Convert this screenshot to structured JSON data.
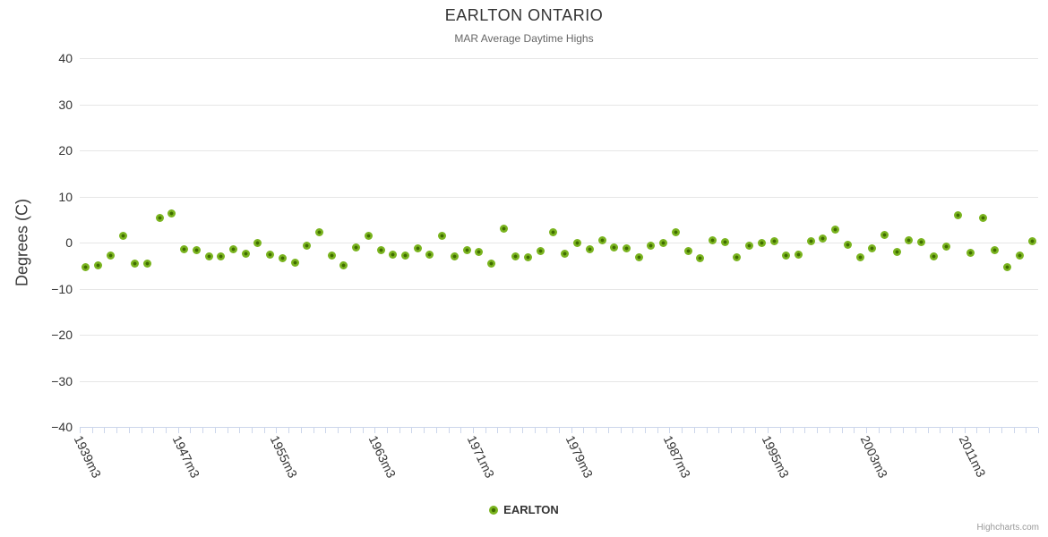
{
  "header": {
    "title": "EARLTON ONTARIO",
    "subtitle": "MAR Average Daytime Highs"
  },
  "y_axis": {
    "title": "Degrees (C)"
  },
  "legend": {
    "label": "EARLTON"
  },
  "credits": {
    "label": "Highcharts.com"
  },
  "colors": {
    "marker_outer": "#7ab41f",
    "marker_inner": "#3f6c00",
    "grid": "#e6e6e6",
    "axis": "#ccd6eb",
    "title": "#333333",
    "subtitle": "#666666",
    "labels": "#333333",
    "credits": "#999999"
  },
  "chart_data": {
    "type": "scatter",
    "title": "EARLTON ONTARIO",
    "subtitle": "MAR Average Daytime Highs",
    "xlabel": "",
    "ylabel": "Degrees (C)",
    "ylim": [
      -40,
      40
    ],
    "y_ticks": [
      40,
      30,
      20,
      10,
      0,
      -10,
      -20,
      -30,
      -40
    ],
    "grid": true,
    "legend_position": "bottom",
    "x_label_every": 8,
    "categories": [
      "1939m3",
      "1940m3",
      "1941m3",
      "1942m3",
      "1943m3",
      "1944m3",
      "1945m3",
      "1946m3",
      "1947m3",
      "1948m3",
      "1949m3",
      "1950m3",
      "1951m3",
      "1952m3",
      "1953m3",
      "1954m3",
      "1955m3",
      "1956m3",
      "1957m3",
      "1958m3",
      "1959m3",
      "1960m3",
      "1961m3",
      "1962m3",
      "1963m3",
      "1964m3",
      "1965m3",
      "1966m3",
      "1967m3",
      "1968m3",
      "1969m3",
      "1970m3",
      "1971m3",
      "1972m3",
      "1973m3",
      "1974m3",
      "1975m3",
      "1976m3",
      "1977m3",
      "1978m3",
      "1979m3",
      "1980m3",
      "1981m3",
      "1982m3",
      "1983m3",
      "1984m3",
      "1985m3",
      "1986m3",
      "1987m3",
      "1988m3",
      "1989m3",
      "1990m3",
      "1991m3",
      "1992m3",
      "1993m3",
      "1994m3",
      "1995m3",
      "1996m3",
      "1997m3",
      "1998m3",
      "1999m3",
      "2000m3",
      "2001m3",
      "2002m3",
      "2003m3",
      "2004m3",
      "2005m3",
      "2006m3",
      "2007m3",
      "2008m3",
      "2009m3",
      "2010m3",
      "2011m3",
      "2012m3",
      "2013m3",
      "2014m3",
      "2015m3",
      "2016m3"
    ],
    "series": [
      {
        "name": "EARLTON",
        "values": [
          -5.4,
          -4.9,
          -2.8,
          1.5,
          -4.5,
          -4.6,
          5.3,
          6.3,
          -1.4,
          -1.7,
          -3.1,
          -3.0,
          -1.5,
          -2.5,
          0.0,
          -2.6,
          -3.4,
          -4.3,
          -0.6,
          2.3,
          -2.8,
          -5.0,
          -1.1,
          1.4,
          -1.7,
          -2.6,
          -2.9,
          -1.3,
          -2.6,
          1.5,
          -3.1,
          -1.6,
          -2.0,
          -4.5,
          3.1,
          -3.1,
          -3.2,
          -1.9,
          2.2,
          -2.4,
          0.0,
          -1.5,
          0.5,
          -1.1,
          -1.3,
          -3.2,
          -0.6,
          0.0,
          2.2,
          -1.9,
          -3.4,
          0.4,
          0.1,
          -3.3,
          -0.6,
          0.0,
          0.3,
          -2.9,
          -2.6,
          0.2,
          0.9,
          2.8,
          -0.4,
          -3.2,
          -1.2,
          1.6,
          -2.1,
          0.5,
          0.1,
          -3.1,
          -0.9,
          5.9,
          -2.2,
          5.4,
          -1.7,
          -5.3,
          -2.8,
          0.3
        ]
      }
    ]
  }
}
